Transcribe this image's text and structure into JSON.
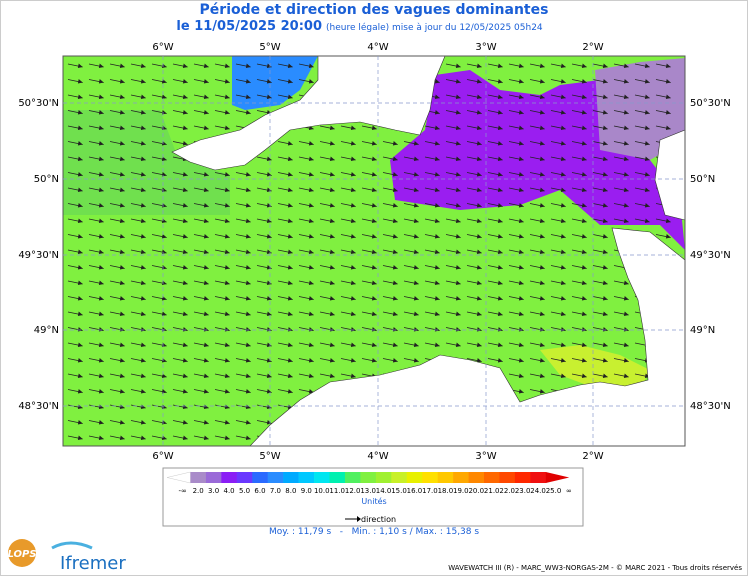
{
  "header": {
    "title": "Période et direction des vagues dominantes",
    "date": "le 11/05/2025 20:00",
    "update": "(heure légale) mise à jour du 12/05/2025 05h24"
  },
  "map": {
    "lon_labels": [
      "6°W",
      "5°W",
      "4°W",
      "3°W",
      "2°W"
    ],
    "lat_labels": [
      "50°30'N",
      "50°N",
      "49°30'N",
      "49°N",
      "48°30'N"
    ]
  },
  "legend": {
    "labels": [
      "-∞",
      "2.0",
      "3.0",
      "4.0",
      "5.0",
      "6.0",
      "7.0",
      "8.0",
      "9.0",
      "10.0",
      "11.0",
      "12.0",
      "13.0",
      "14.0",
      "15.0",
      "16.0",
      "17.0",
      "18.0",
      "19.0",
      "20.0",
      "21.0",
      "22.0",
      "23.0",
      "24.0",
      "25.0",
      "∞"
    ],
    "colors": [
      "#ffffff",
      "#a98bc9",
      "#9a6ad8",
      "#8a1ef5",
      "#6a38ff",
      "#2a6aff",
      "#2a8cff",
      "#00aaff",
      "#00c8ff",
      "#00e6f0",
      "#00f0b0",
      "#50f060",
      "#80f040",
      "#a0f030",
      "#c8f028",
      "#e8f000",
      "#ffe000",
      "#ffc800",
      "#ffa800",
      "#ff8800",
      "#ff6800",
      "#ff4800",
      "#ff2800",
      "#f01010",
      "#e00000"
    ],
    "unit": "Unités",
    "direction": "direction",
    "stats": "Moy. : 11,79 s   -   Min. : 1,10 s / Max. : 15,38 s"
  },
  "footer": {
    "lops": "LOPS",
    "brand": "Ifremer",
    "credits": "WAVEWATCH III (R) - MARC_WW3-NORGAS-2M - © MARC 2021 - Tous droits réservés"
  }
}
